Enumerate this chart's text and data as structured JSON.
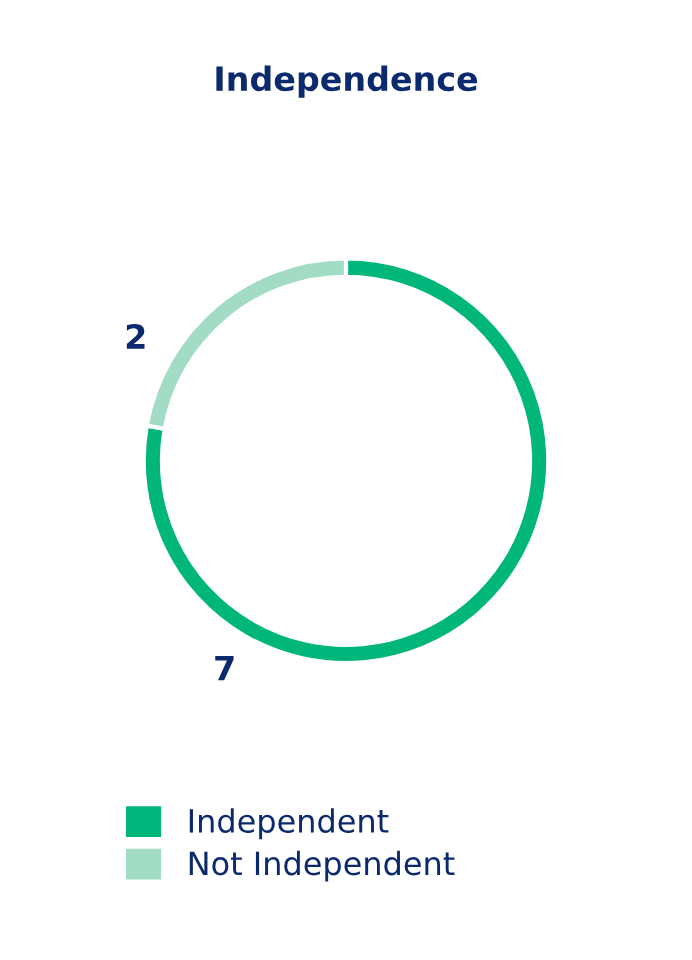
{
  "chart_data": {
    "type": "donut",
    "title": "Independence",
    "categories": [
      "Independent",
      "Not Independent"
    ],
    "values": [
      7,
      2
    ],
    "colors": [
      "#00b67a",
      "#a3dcc4"
    ],
    "data_labels": true,
    "legend": "bottom"
  }
}
